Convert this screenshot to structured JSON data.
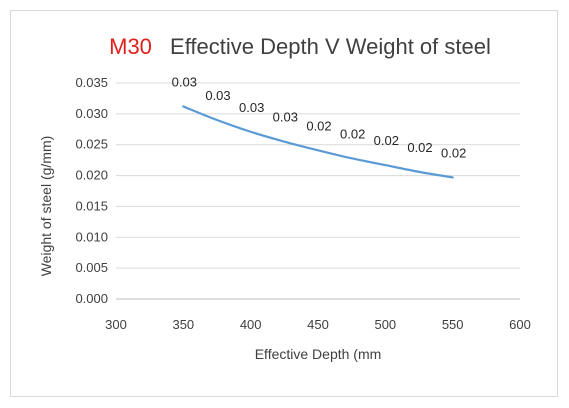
{
  "chart_data": {
    "type": "line",
    "title_prefix": "M30",
    "title": "Effective Depth V Weight of steel",
    "xlabel": "Effective Depth (mm",
    "ylabel": "Weight of steel (g/mm)",
    "xlim": [
      300,
      600
    ],
    "ylim": [
      0,
      0.035
    ],
    "x_ticks": [
      300,
      350,
      400,
      450,
      500,
      550,
      600
    ],
    "y_ticks": [
      0.0,
      0.005,
      0.01,
      0.015,
      0.02,
      0.025,
      0.03,
      0.035
    ],
    "x_tick_labels": [
      "300",
      "350",
      "400",
      "450",
      "500",
      "550",
      "600"
    ],
    "y_tick_labels": [
      "0.000",
      "0.005",
      "0.010",
      "0.015",
      "0.020",
      "0.025",
      "0.030",
      "0.035"
    ],
    "grid": "horizontal",
    "series": [
      {
        "color": "#5b9bd5",
        "x": [
          350,
          375,
          400,
          425,
          450,
          475,
          500,
          525,
          550
        ],
        "y": [
          0.0312,
          0.029,
          0.0271,
          0.0255,
          0.0241,
          0.0228,
          0.0217,
          0.0206,
          0.0197
        ],
        "data_labels": [
          "0.03",
          "0.03",
          "0.03",
          "0.03",
          "0.02",
          "0.02",
          "0.02",
          "0.02",
          "0.02"
        ]
      }
    ],
    "title_accent_color": "#e0201b"
  }
}
